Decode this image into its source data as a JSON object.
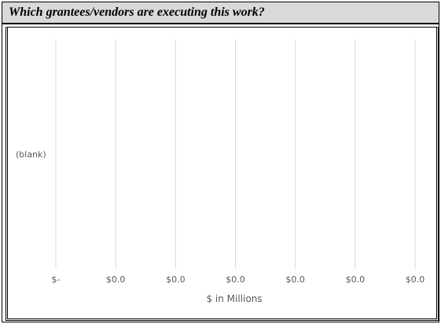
{
  "header": {
    "title": "Which grantees/vendors are executing this work?"
  },
  "chart_data": {
    "type": "bar",
    "orientation": "horizontal",
    "categories": [
      "(blank)"
    ],
    "values": [
      0
    ],
    "xlabel": "$ in Millions",
    "ylabel": "",
    "x_tick_labels": [
      "$-",
      "$0.0",
      "$0.0",
      "$0.0",
      "$0.0",
      "$0.0",
      "$0.0"
    ],
    "grid": true,
    "colors": {
      "grid": "#d9d9d9",
      "text": "#595959"
    }
  }
}
